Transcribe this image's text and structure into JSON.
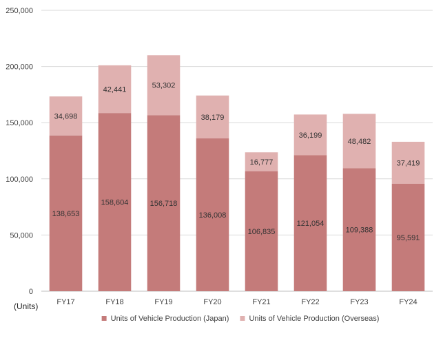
{
  "chart_data": {
    "type": "bar",
    "stacked": true,
    "categories": [
      "FY17",
      "FY18",
      "FY19",
      "FY20",
      "FY21",
      "FY22",
      "FY23",
      "FY24"
    ],
    "series": [
      {
        "name": "Units of Vehicle Production (Japan)",
        "values": [
          138653,
          158604,
          156718,
          136008,
          106835,
          121054,
          109388,
          95591
        ],
        "labels": [
          "138,653",
          "158,604",
          "156,718",
          "136,008",
          "106,835",
          "121,054",
          "109,388",
          "95,591"
        ],
        "color": "#c47b7a"
      },
      {
        "name": "Units of Vehicle Production (Overseas)",
        "values": [
          34698,
          42441,
          53302,
          38179,
          16777,
          36199,
          48482,
          37419
        ],
        "labels": [
          "34,698",
          "42,441",
          "53,302",
          "38,179",
          "16,777",
          "36,199",
          "48,482",
          "37,419"
        ],
        "color": "#e0b1b0"
      }
    ],
    "ylim": [
      0,
      250000
    ],
    "yticks": [
      0,
      50000,
      100000,
      150000,
      200000,
      250000
    ],
    "ytick_labels": [
      "0",
      "50,000",
      "100,000",
      "150,000",
      "200,000",
      "250,000"
    ],
    "unit_label": "(Units)",
    "grid": true,
    "grid_color": "#d9d9d9",
    "legend_position": "bottom"
  }
}
